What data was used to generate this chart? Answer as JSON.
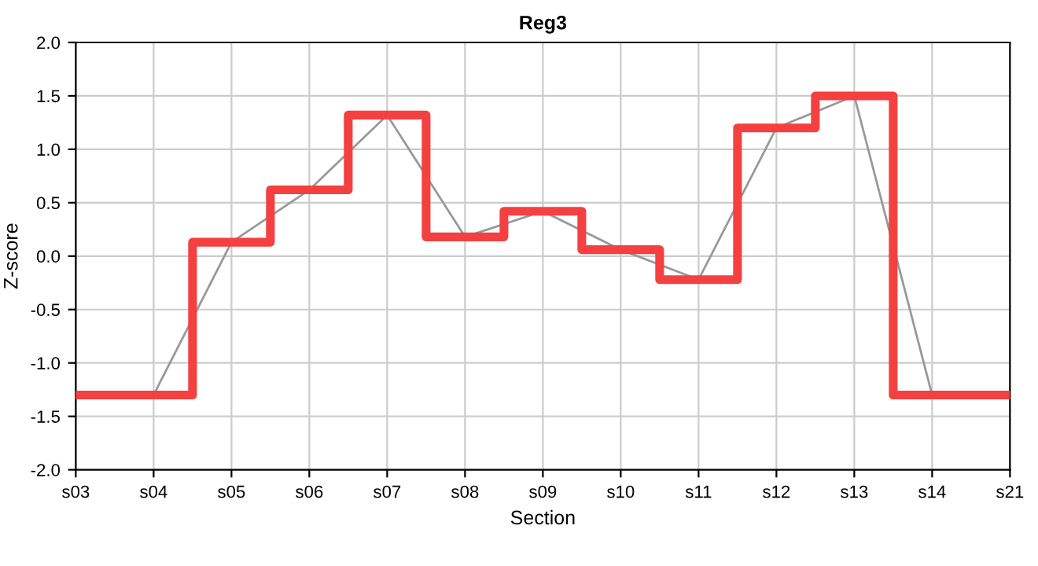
{
  "chart_data": {
    "type": "step",
    "title": "Reg3",
    "xlabel": "Section",
    "ylabel": "Z-score",
    "categories": [
      "s03",
      "s04",
      "s05",
      "s06",
      "s07",
      "s08",
      "s09",
      "s10",
      "s11",
      "s12",
      "s13",
      "s14",
      "s21"
    ],
    "series": [
      {
        "type": "line",
        "color": "#999999",
        "values": [
          -1.3,
          -1.3,
          0.13,
          0.62,
          1.32,
          0.18,
          0.42,
          0.06,
          -0.22,
          1.2,
          1.5,
          -1.3,
          -1.3
        ]
      },
      {
        "color": "#f44040",
        "values": [
          -1.3,
          -1.3,
          0.13,
          0.62,
          1.32,
          0.18,
          0.42,
          0.06,
          -0.22,
          1.2,
          1.5,
          -1.3,
          -1.3
        ]
      }
    ],
    "ylim": [
      -2.0,
      2.0
    ],
    "yticks": [
      {
        "value": -2.0,
        "label": "-2.0"
      },
      {
        "value": -1.5,
        "label": "-1.5"
      },
      {
        "value": -1.0,
        "label": "-1.0"
      },
      {
        "value": -0.5,
        "label": "-0.5"
      },
      {
        "value": 0.0,
        "label": "0.0"
      },
      {
        "value": 0.5,
        "label": "0.5"
      },
      {
        "value": 1.0,
        "label": "1.0"
      },
      {
        "value": 1.5,
        "label": "1.5"
      },
      {
        "value": 2.0,
        "label": "2.0"
      }
    ],
    "grid": true
  }
}
